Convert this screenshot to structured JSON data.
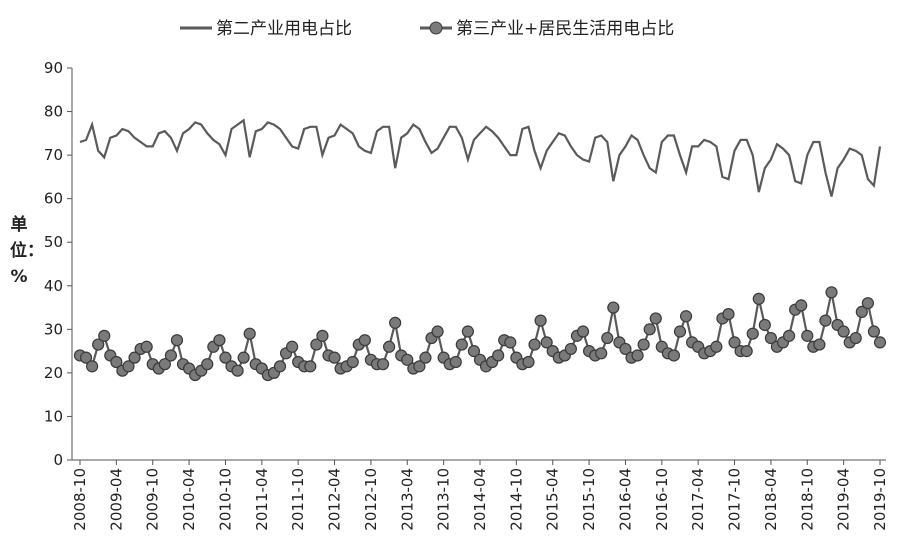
{
  "chart_data": {
    "type": "line",
    "y_label": "单位：%",
    "categories": [
      "2008-10",
      null,
      null,
      null,
      null,
      null,
      "2009-04",
      null,
      null,
      null,
      null,
      null,
      "2009-10",
      null,
      null,
      null,
      null,
      null,
      "2010-04",
      null,
      null,
      null,
      null,
      null,
      "2010-10",
      null,
      null,
      null,
      null,
      null,
      "2011-04",
      null,
      null,
      null,
      null,
      null,
      "2011-10",
      null,
      null,
      null,
      null,
      null,
      "2012-04",
      null,
      null,
      null,
      null,
      null,
      "2012-10",
      null,
      null,
      null,
      null,
      null,
      "2013-04",
      null,
      null,
      null,
      null,
      null,
      "2013-10",
      null,
      null,
      null,
      null,
      null,
      "2014-04",
      null,
      null,
      null,
      null,
      null,
      "2014-10",
      null,
      null,
      null,
      null,
      null,
      "2015-04",
      null,
      null,
      null,
      null,
      null,
      "2015-10",
      null,
      null,
      null,
      null,
      null,
      "2016-04",
      null,
      null,
      null,
      null,
      null,
      "2016-10",
      null,
      null,
      null,
      null,
      null,
      "2017-04",
      null,
      null,
      null,
      null,
      null,
      "2017-10",
      null,
      null,
      null,
      null,
      null,
      "2018-04",
      null,
      null,
      null,
      null,
      null,
      "2018-10",
      null,
      null,
      null,
      null,
      null,
      "2019-04",
      null,
      null,
      null,
      null,
      null,
      "2019-10"
    ],
    "series": [
      {
        "name": "第二产业用电占比",
        "color": "#5a5a5a",
        "marker": false,
        "values": [
          73,
          73.5,
          77,
          71,
          69.5,
          74,
          74.5,
          76,
          75.5,
          74,
          73,
          72,
          72,
          75,
          75.5,
          74,
          71,
          75,
          76,
          77.5,
          77,
          75,
          73.5,
          72.5,
          70,
          76,
          77,
          78,
          69.5,
          75.5,
          76,
          77.5,
          77,
          76,
          74,
          72,
          71.5,
          76,
          76.5,
          76.5,
          70,
          74,
          74.5,
          77,
          76,
          75,
          72,
          71,
          70.5,
          75.5,
          76.5,
          76.5,
          67,
          74,
          75,
          77,
          76,
          73,
          70.5,
          71.5,
          74,
          76.5,
          76.5,
          74,
          69,
          73.5,
          75,
          76.5,
          75.5,
          74,
          72,
          70,
          70,
          76,
          76.5,
          71,
          67,
          71,
          73,
          75,
          74.5,
          72,
          70,
          69,
          68.5,
          74,
          74.5,
          73,
          64,
          70,
          72,
          74.5,
          73.5,
          70,
          67,
          66,
          73,
          74.5,
          74.5,
          70,
          66,
          72,
          72,
          73.5,
          73,
          72,
          65,
          64.5,
          71,
          73.5,
          73.5,
          70,
          61.5,
          67,
          69,
          72.5,
          71.5,
          70,
          64,
          63.5,
          70,
          73,
          73,
          66,
          60.5,
          67,
          69,
          71.5,
          71,
          70,
          64.5,
          63,
          72
        ]
      },
      {
        "name": "第三产业+居民生活用电占比",
        "color": "#5a5a5a",
        "marker": true,
        "values": [
          24,
          23.5,
          21.5,
          26.5,
          28.5,
          24,
          22.5,
          20.5,
          21.5,
          23.5,
          25.5,
          26,
          22,
          21,
          22,
          24,
          27.5,
          22,
          21,
          19.5,
          20.5,
          22,
          26,
          27.5,
          23.5,
          21.5,
          20.5,
          23.5,
          29,
          22,
          21,
          19.5,
          20,
          21.5,
          24.5,
          26,
          22.5,
          21.5,
          21.5,
          26.5,
          28.5,
          24,
          23.5,
          21,
          21.5,
          22.5,
          26.5,
          27.5,
          23,
          22,
          22,
          26,
          31.5,
          24,
          23,
          21,
          21.5,
          23.5,
          28,
          29.5,
          23.5,
          22,
          22.5,
          26.5,
          29.5,
          25,
          23,
          21.5,
          22.5,
          24,
          27.5,
          27,
          23.5,
          22,
          22.5,
          26.5,
          32,
          27,
          25,
          23.5,
          24,
          25.5,
          28.5,
          29.5,
          25,
          24,
          24.5,
          28,
          35,
          27,
          25.5,
          23.5,
          24,
          26.5,
          30,
          32.5,
          26,
          24.5,
          24,
          29.5,
          33,
          27,
          26,
          24.5,
          25,
          26,
          32.5,
          33.5,
          27,
          25,
          25,
          29,
          37,
          31,
          28,
          26,
          27,
          28.5,
          34.5,
          35.5,
          28.5,
          26,
          26.5,
          32,
          38.5,
          31,
          29.5,
          27,
          28,
          34,
          36,
          29.5,
          27
        ]
      }
    ],
    "ylim": [
      0,
      90
    ],
    "yticks": [
      0,
      10,
      20,
      30,
      40,
      50,
      60,
      70,
      80,
      90
    ],
    "grid": false
  }
}
